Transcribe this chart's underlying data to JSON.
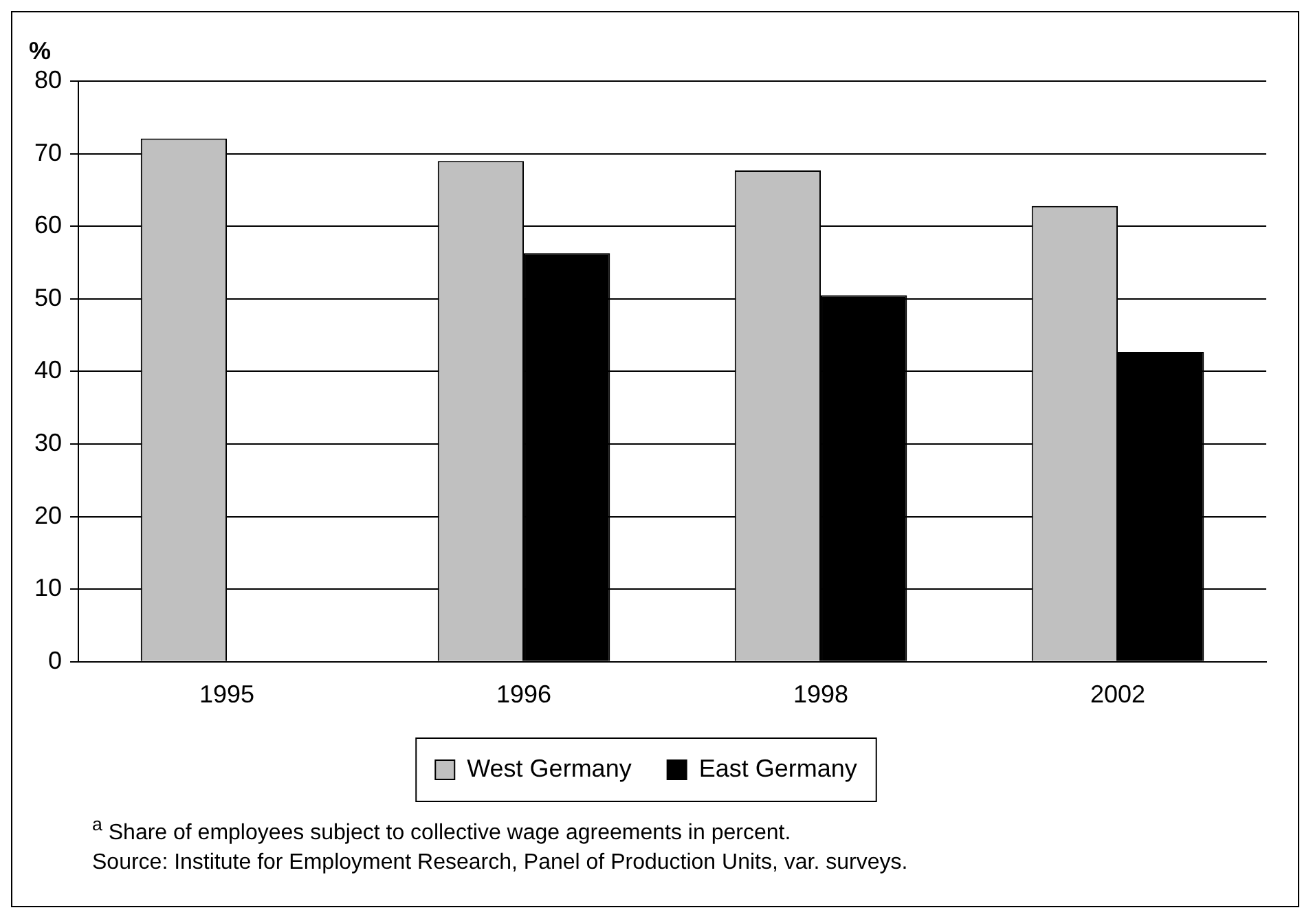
{
  "chart_data": {
    "type": "bar",
    "ylabel": "%",
    "categories": [
      "1995",
      "1996",
      "1998",
      "2002"
    ],
    "series": [
      {
        "name": "West Germany",
        "color": "#c0c0c0",
        "values": [
          72.1,
          69.0,
          67.7,
          62.8
        ]
      },
      {
        "name": "East Germany",
        "color": "#000000",
        "values": [
          null,
          56.3,
          50.5,
          42.7
        ]
      }
    ],
    "ylim": [
      0,
      80
    ],
    "yticks": [
      0,
      10,
      20,
      30,
      40,
      50,
      60,
      70,
      80
    ],
    "grid": "y",
    "legend": "bottom",
    "annotations": [
      "$^{a}$ Share of employees subject to collective wage agreements in percent.",
      "Source:  Institute for Employment Research, Panel of Production Units, var. surveys."
    ]
  }
}
